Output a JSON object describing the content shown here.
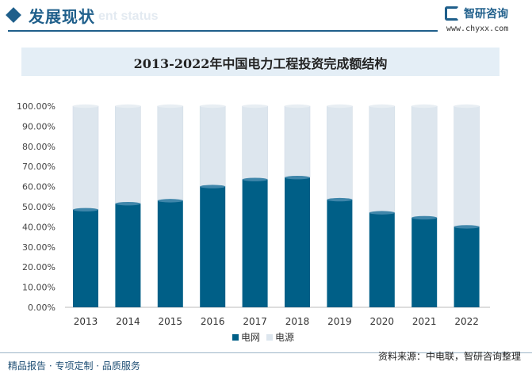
{
  "header": {
    "section_title": "发展现状",
    "ghost_text": "ent status"
  },
  "logo": {
    "name": "智研咨询",
    "url": "www.chyxx.com"
  },
  "chart_data": {
    "type": "bar",
    "stacked": true,
    "title": "2013-2022年中国电力工程投资完成额结构",
    "categories": [
      "2013",
      "2014",
      "2015",
      "2016",
      "2017",
      "2018",
      "2019",
      "2020",
      "2021",
      "2022"
    ],
    "series": [
      {
        "name": "电网",
        "values": [
          48.5,
          51.5,
          53.0,
          60.0,
          63.5,
          64.5,
          53.5,
          47.0,
          44.5,
          40.0
        ],
        "color": "#005f87"
      },
      {
        "name": "电源",
        "values": [
          51.5,
          48.5,
          47.0,
          40.0,
          36.5,
          35.5,
          46.5,
          53.0,
          55.5,
          60.0
        ],
        "color": "#dde6ee"
      }
    ],
    "ylim": [
      0,
      100
    ],
    "yticks": [
      "0.00%",
      "10.00%",
      "20.00%",
      "30.00%",
      "40.00%",
      "50.00%",
      "60.00%",
      "70.00%",
      "80.00%",
      "90.00%",
      "100.00%"
    ],
    "grid": false,
    "legend": "bottom-center",
    "xlabel": "",
    "ylabel": ""
  },
  "footer": {
    "left": "精品报告 · 专项定制 · 品质服务",
    "right": "资料来源：中电联，智研咨询整理"
  }
}
